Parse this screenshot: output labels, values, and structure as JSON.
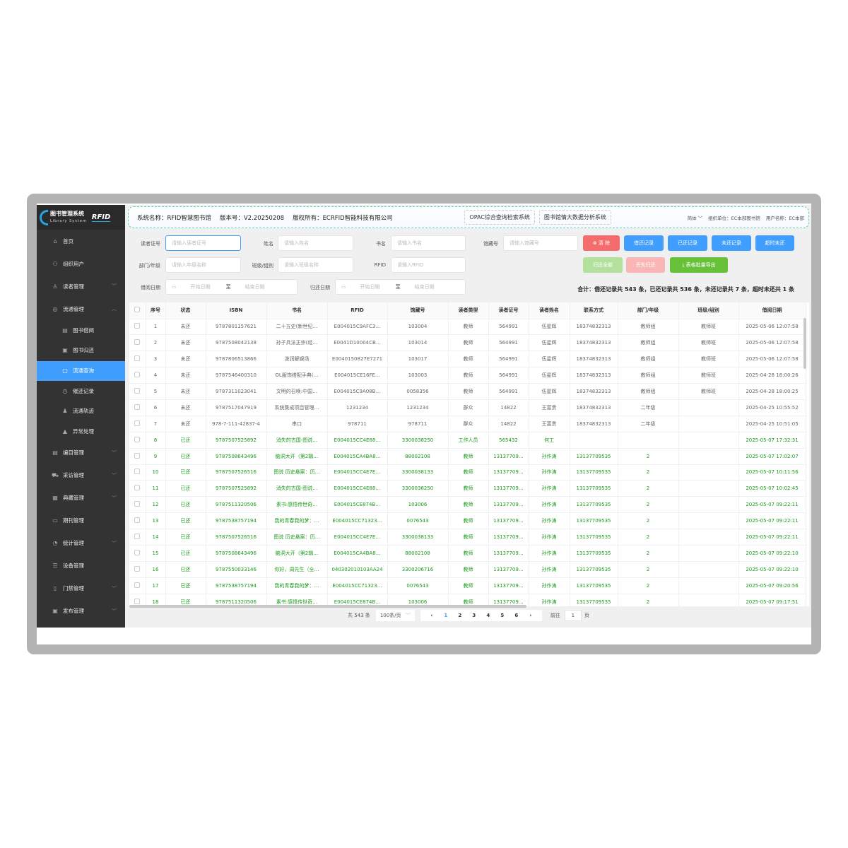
{
  "logo": {
    "title": "图书管理系统",
    "subtitle": "Library System",
    "rfid": "RFID"
  },
  "header": {
    "system_name": "系统名称：RFID智慧图书馆",
    "version": "版本号：V2.20250208",
    "copyright": "版权所有：ECRFID智能科技有限公司",
    "opac_button": "OPAC综合查询检索系统",
    "bigdata_button": "图书馆情大数据分析系统",
    "language": "简体",
    "org": "组织单位：EC本部图书馆",
    "user": "用户名称：EC本部"
  },
  "sidebar": {
    "items": [
      {
        "label": "首页",
        "icon": "home-icon",
        "glyph": "⌂",
        "level": 0
      },
      {
        "label": "组织用户",
        "icon": "org-icon",
        "glyph": "⚇",
        "level": 0
      },
      {
        "label": "读者管理",
        "icon": "reader-icon",
        "glyph": "♙",
        "level": 0,
        "chevron": "﹀"
      },
      {
        "label": "流通管理",
        "icon": "circulation-icon",
        "glyph": "◎",
        "level": 0,
        "chevron": "︿"
      },
      {
        "label": "图书借阅",
        "icon": "borrow-icon",
        "glyph": "▤",
        "level": 1
      },
      {
        "label": "图书归还",
        "icon": "return-icon",
        "glyph": "▣",
        "level": 1
      },
      {
        "label": "流通查询",
        "icon": "clipboard-icon",
        "glyph": "▢",
        "level": 1,
        "active": true
      },
      {
        "label": "催还记录",
        "icon": "alarm-icon",
        "glyph": "◷",
        "level": 1
      },
      {
        "label": "流通轨迹",
        "icon": "track-icon",
        "glyph": "♟",
        "level": 1
      },
      {
        "label": "异常处理",
        "icon": "warning-icon",
        "glyph": "▲",
        "level": 1
      },
      {
        "label": "编目管理",
        "icon": "catalog-icon",
        "glyph": "▤",
        "level": 0,
        "chevron": "﹀"
      },
      {
        "label": "采访管理",
        "icon": "cart-icon",
        "glyph": "⛟",
        "level": 0,
        "chevron": "﹀"
      },
      {
        "label": "典藏管理",
        "icon": "collection-icon",
        "glyph": "▦",
        "level": 0,
        "chevron": "﹀"
      },
      {
        "label": "期刊管理",
        "icon": "journal-icon",
        "glyph": "▭",
        "level": 0
      },
      {
        "label": "统计管理",
        "icon": "stats-icon",
        "glyph": "◔",
        "level": 0,
        "chevron": "﹀"
      },
      {
        "label": "设备管理",
        "icon": "device-icon",
        "glyph": "☰",
        "level": 0
      },
      {
        "label": "门禁管理",
        "icon": "gate-icon",
        "glyph": "▯",
        "level": 0,
        "chevron": "﹀"
      },
      {
        "label": "发布管理",
        "icon": "publish-icon",
        "glyph": "▣",
        "level": 0,
        "chevron": "﹀"
      }
    ]
  },
  "filters": {
    "reader_id": {
      "label": "读者证号",
      "placeholder": "请输入读者证号"
    },
    "name": {
      "label": "姓名",
      "placeholder": "请输入姓名"
    },
    "title": {
      "label": "书名",
      "placeholder": "请输入书名"
    },
    "call_no": {
      "label": "馆藏号",
      "placeholder": "请输入馆藏号"
    },
    "dept": {
      "label": "部门/年级",
      "placeholder": "请输入年级名称"
    },
    "class": {
      "label": "班级/组别",
      "placeholder": "请输入班级名称"
    },
    "rfid": {
      "label": "RFID",
      "placeholder": "请输入RFID"
    },
    "borrow_date": {
      "label": "借阅日期",
      "start": "开始日期",
      "sep": "至",
      "end": "结束日期"
    },
    "return_date": {
      "label": "归还日期",
      "start": "开始日期",
      "sep": "至",
      "end": "结束日期"
    }
  },
  "buttons": {
    "clear": "⊗ 清 除",
    "all_records": "借还记录",
    "returned": "已还记录",
    "not_returned": "未还记录",
    "overdue": "超时未还",
    "return_all": "归还全部",
    "lost_return": "丢失归还",
    "export": "⤓ 表格批量导出"
  },
  "colors": {
    "primary": "#409eff",
    "danger": "#f56c6c",
    "success": "#67c23a",
    "returned_text": "#1a9a1a"
  },
  "summary": "合计：借还记录共 543 条，已还记录共 536 条，未还记录共 7 条，超时未还共 1 条",
  "table": {
    "columns": [
      "序号",
      "状态",
      "ISBN",
      "书名",
      "RFID",
      "馆藏号",
      "读者类型",
      "读者证号",
      "读者姓名",
      "联系方式",
      "部门/年级",
      "班级/组别",
      "借阅日期"
    ],
    "rows": [
      [
        "1",
        "未还",
        "9787801157621",
        "二十五史(新世纪…",
        "E004015C9AFC3…",
        "103004",
        "教师",
        "564991",
        "伍星辉",
        "18374832313",
        "教师组",
        "教师班",
        "2025-05-06 12:07:58"
      ],
      [
        "2",
        "未还",
        "9787508042138",
        "孙子兵法正宗(经…",
        "E0041D10004CB…",
        "103014",
        "教师",
        "564991",
        "伍星辉",
        "18374832313",
        "教师组",
        "教师班",
        "2025-05-06 12:07:58"
      ],
      [
        "3",
        "未还",
        "9787806513866",
        "泼润解娱场",
        "E0040150827E7271",
        "103017",
        "教师",
        "564991",
        "伍星辉",
        "18374832313",
        "教师组",
        "教师班",
        "2025-05-06 12:07:58"
      ],
      [
        "4",
        "未还",
        "9787546400310",
        "OL服饰搭配手典(…",
        "E004015CE16FE…",
        "103003",
        "教师",
        "564991",
        "伍星辉",
        "18374832313",
        "教师组",
        "教师班",
        "2025-04-28 18:00:26"
      ],
      [
        "5",
        "未还",
        "9787311023041",
        "文明的召唤:中国…",
        "E004015C9A08B…",
        "0058356",
        "教师",
        "564991",
        "伍星辉",
        "18374832313",
        "教师组",
        "教师班",
        "2025-04-28 18:00:25"
      ],
      [
        "6",
        "未还",
        "9787517047919",
        "系统集成项目管理…",
        "1231234",
        "1231234",
        "群众",
        "14822",
        "王富贵",
        "18374832313",
        "二年级",
        "",
        "2025-04-25 10:55:52"
      ],
      [
        "7",
        "未还",
        "978-7-111-42837-4",
        "串口",
        "978711",
        "978711",
        "群众",
        "14822",
        "王富贵",
        "18374832313",
        "二年级",
        "",
        "2025-04-25 10:51:05"
      ],
      [
        "8",
        "已还",
        "9787507525892",
        "消失的古国-图说…",
        "E004015CC4E88…",
        "3300038250",
        "工作人员",
        "565432",
        "何工",
        "",
        "",
        "",
        "2025-05-07 17:32:31"
      ],
      [
        "9",
        "已还",
        "9787508643496",
        "脑洞大开（第2辑…",
        "E004015CA4BA8…",
        "88002108",
        "教师",
        "13137709…",
        "孙作涛",
        "13137709535",
        "2",
        "",
        "2025-05-07 17:02:07"
      ],
      [
        "10",
        "已还",
        "9787507526516",
        "图说 历史悬案：历…",
        "E004015CC4E7E…",
        "3300038133",
        "教师",
        "13137709…",
        "孙作涛",
        "13137709535",
        "2",
        "",
        "2025-05-07 10:11:56"
      ],
      [
        "11",
        "已还",
        "9787507525892",
        "消失的古国-图说…",
        "E004015CC4E88…",
        "3300038250",
        "教师",
        "13137709…",
        "孙作涛",
        "13137709535",
        "2",
        "",
        "2025-05-07 10:02:45"
      ],
      [
        "12",
        "已还",
        "9787511320506",
        "素书:感悟传世奇…",
        "E004015CE874B…",
        "103006",
        "教师",
        "13137709…",
        "孙作涛",
        "13137709535",
        "2",
        "",
        "2025-05-07 09:22:11"
      ],
      [
        "13",
        "已还",
        "9787538757194",
        "我的青春我的梦：…",
        "E004015CC71323…",
        "0076543",
        "教师",
        "13137709…",
        "孙作涛",
        "13137709535",
        "2",
        "",
        "2025-05-07 09:22:11"
      ],
      [
        "14",
        "已还",
        "9787507526516",
        "图说 历史悬案：历…",
        "E004015CC4E7E…",
        "3300038133",
        "教师",
        "13137709…",
        "孙作涛",
        "13137709535",
        "2",
        "",
        "2025-05-07 09:22:11"
      ],
      [
        "15",
        "已还",
        "9787508643496",
        "脑洞大开（第2辑…",
        "E004015CA4BA8…",
        "88002108",
        "教师",
        "13137709…",
        "孙作涛",
        "13137709535",
        "2",
        "",
        "2025-05-07 09:22:10"
      ],
      [
        "16",
        "已还",
        "9787550033146",
        "你好，周先生（全…",
        "040302010103AA24",
        "3300206716",
        "教师",
        "13137709…",
        "孙作涛",
        "13137709535",
        "2",
        "",
        "2025-05-07 09:22:10"
      ],
      [
        "17",
        "已还",
        "9787538757194",
        "我的青春我的梦：…",
        "E004015CC71323…",
        "0076543",
        "教师",
        "13137709…",
        "孙作涛",
        "13137709535",
        "2",
        "",
        "2025-05-07 09:20:56"
      ],
      [
        "18",
        "已还",
        "9787511320506",
        "素书:感悟传世奇…",
        "E004015CE874B…",
        "103006",
        "教师",
        "13137709…",
        "孙作涛",
        "13137709535",
        "2",
        "",
        "2025-05-07 09:17:51"
      ]
    ]
  },
  "pagination": {
    "total": "共 543 条",
    "page_size": "100条/页",
    "prev": "‹",
    "next": "›",
    "pages": [
      "1",
      "2",
      "3",
      "4",
      "5",
      "6"
    ],
    "current": "1",
    "goto_label": "前往",
    "goto_value": "1",
    "goto_suffix": "页"
  }
}
